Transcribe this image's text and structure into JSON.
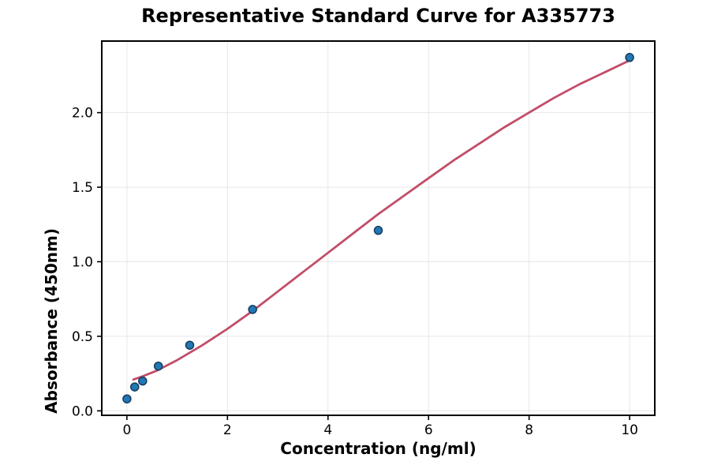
{
  "title": "Representative Standard Curve for A335773",
  "chart_data": {
    "type": "scatter",
    "title": "Representative Standard Curve for A335773",
    "xlabel": "Concentration (ng/ml)",
    "ylabel": "Absorbance (450nm)",
    "xlim": [
      -0.5,
      10.5
    ],
    "ylim": [
      -0.03,
      2.48
    ],
    "grid": true,
    "grid_color": "#e7e7e7",
    "frame_color": "#000000",
    "x_ticks": [
      0,
      2,
      4,
      6,
      8,
      10
    ],
    "x_tick_labels": [
      "0",
      "2",
      "4",
      "6",
      "8",
      "10"
    ],
    "y_ticks": [
      0.0,
      0.5,
      1.0,
      1.5,
      2.0
    ],
    "y_tick_labels": [
      "0.0",
      "0.5",
      "1.0",
      "1.5",
      "2.0"
    ],
    "points": {
      "name": "standards",
      "x": [
        0,
        0.156,
        0.313,
        0.625,
        1.25,
        2.5,
        5,
        10
      ],
      "y": [
        0.08,
        0.16,
        0.2,
        0.3,
        0.44,
        0.68,
        1.21,
        2.37
      ],
      "color": "#2277b4",
      "edge_color": "#163a5c"
    },
    "fit_curve": {
      "name": "4pl-fit",
      "x": [
        0.13,
        0.3,
        0.6,
        1.0,
        1.5,
        2.0,
        2.5,
        3.0,
        3.5,
        4.0,
        4.5,
        5.0,
        5.5,
        6.0,
        6.5,
        7.0,
        7.5,
        8.0,
        8.5,
        9.0,
        9.5,
        10.0
      ],
      "y": [
        0.21,
        0.23,
        0.27,
        0.34,
        0.44,
        0.55,
        0.67,
        0.8,
        0.93,
        1.06,
        1.19,
        1.32,
        1.44,
        1.56,
        1.68,
        1.79,
        1.9,
        2.0,
        2.1,
        2.19,
        2.27,
        2.35
      ],
      "color": "#c24d68"
    }
  }
}
